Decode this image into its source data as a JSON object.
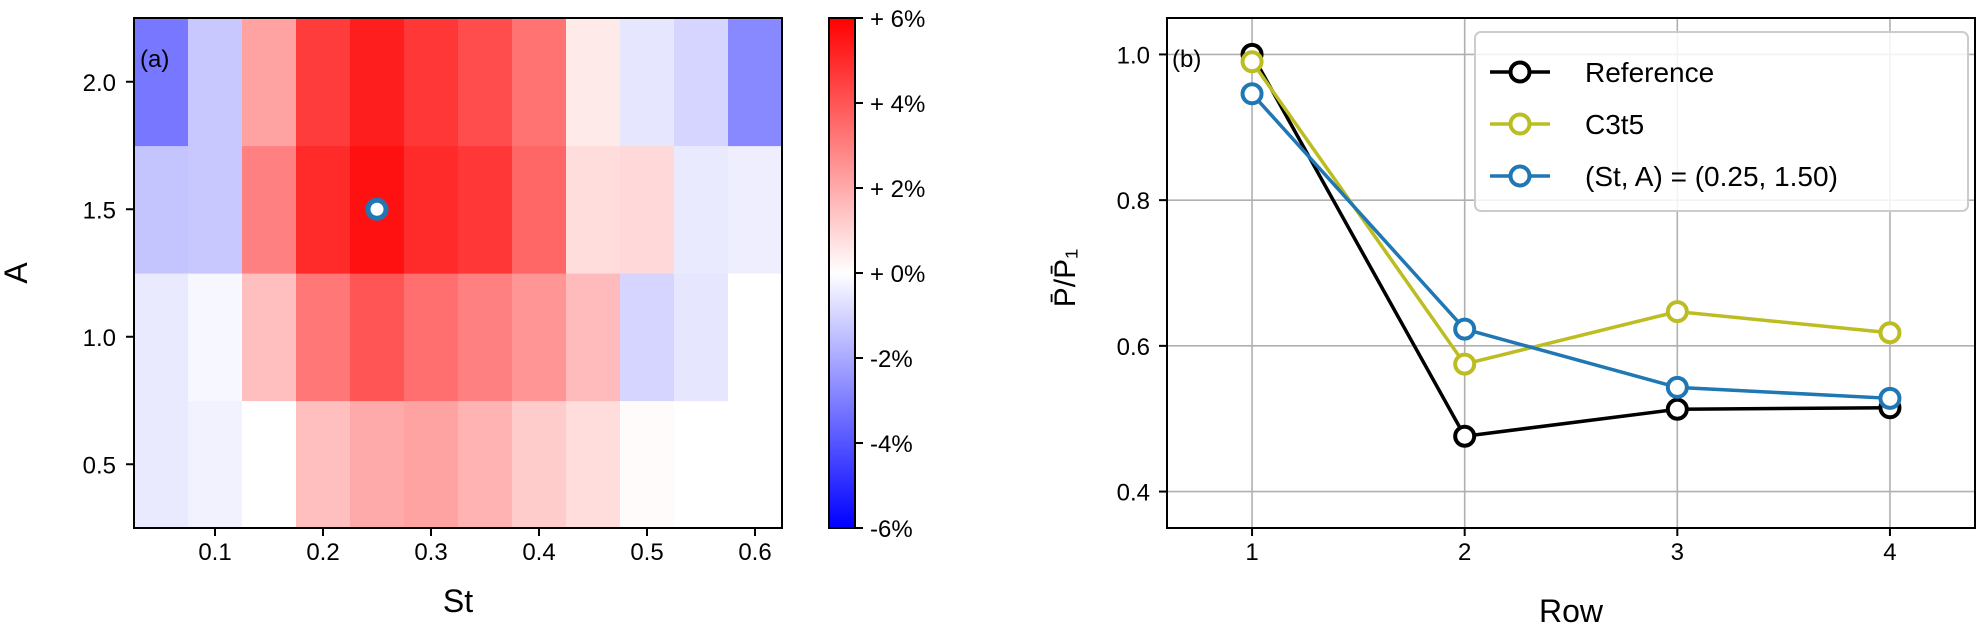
{
  "chart_data": [
    {
      "type": "heatmap",
      "panel_label": "(a)",
      "xlabel": "St",
      "ylabel": "A",
      "x_values": [
        0.05,
        0.1,
        0.15,
        0.2,
        0.25,
        0.3,
        0.35,
        0.4,
        0.45,
        0.5,
        0.55,
        0.6
      ],
      "y_values": [
        0.5,
        1.0,
        1.5,
        2.0
      ],
      "xticks": [
        0.1,
        0.2,
        0.3,
        0.4,
        0.5,
        0.6
      ],
      "xtick_labels": [
        "0.1",
        "0.2",
        "0.3",
        "0.4",
        "0.5",
        "0.6"
      ],
      "yticks": [
        0.5,
        1.0,
        1.5,
        2.0
      ],
      "ytick_labels": [
        "0.5",
        "1.0",
        "1.5",
        "2.0"
      ],
      "xlim": [
        0.025,
        0.625
      ],
      "ylim": [
        0.25,
        2.25
      ],
      "z_unit": "%",
      "z": [
        [
          -0.5,
          -0.3,
          0.0,
          1.5,
          2.0,
          2.2,
          1.8,
          1.2,
          0.8,
          0.1,
          0.0,
          0.0
        ],
        [
          -0.5,
          -0.2,
          1.5,
          3.2,
          4.0,
          3.4,
          3.0,
          2.5,
          1.6,
          -1.0,
          -0.6,
          0.0
        ],
        [
          -1.4,
          -1.3,
          3.0,
          5.0,
          5.6,
          5.0,
          4.7,
          3.6,
          0.8,
          0.9,
          -0.5,
          -0.4
        ],
        [
          -3.2,
          -1.3,
          2.2,
          4.6,
          5.3,
          4.7,
          4.2,
          3.3,
          0.5,
          -0.6,
          -1.0,
          -2.8
        ]
      ],
      "colorbar": {
        "range": [
          -6,
          6
        ],
        "colors": {
          "min": "#0000ff",
          "mid": "#ffffff",
          "max": "#ff0000"
        },
        "ticks": [
          6,
          4,
          2,
          0,
          -2,
          -4,
          -6
        ],
        "tick_labels": [
          "+ 6%",
          "+ 4%",
          "+ 2%",
          "+ 0%",
          "-2%",
          "-4%",
          "-6%"
        ]
      },
      "marker": {
        "St": 0.25,
        "A": 1.5,
        "color": "#1f77b4"
      }
    },
    {
      "type": "line",
      "panel_label": "(b)",
      "xlabel": "Row",
      "ylabel": "P̄/P̄₁",
      "x": [
        1,
        2,
        3,
        4
      ],
      "xticks": [
        1,
        2,
        3,
        4
      ],
      "xtick_labels": [
        "1",
        "2",
        "3",
        "4"
      ],
      "yticks": [
        0.4,
        0.6,
        0.8,
        1.0
      ],
      "ytick_labels": [
        "0.4",
        "0.6",
        "0.8",
        "1.0"
      ],
      "xlim": [
        0.6,
        4.4
      ],
      "ylim": [
        0.35,
        1.05
      ],
      "grid": true,
      "legend_position": "top-right",
      "series": [
        {
          "name": "Reference",
          "color": "#000000",
          "values": [
            1.0,
            0.476,
            0.513,
            0.515
          ]
        },
        {
          "name": "C3t5",
          "color": "#bcbd22",
          "values": [
            0.99,
            0.575,
            0.647,
            0.618
          ]
        },
        {
          "name": "(St, A) = (0.25, 1.50)",
          "color": "#1f77b4",
          "values": [
            0.946,
            0.623,
            0.543,
            0.528
          ]
        }
      ]
    }
  ]
}
